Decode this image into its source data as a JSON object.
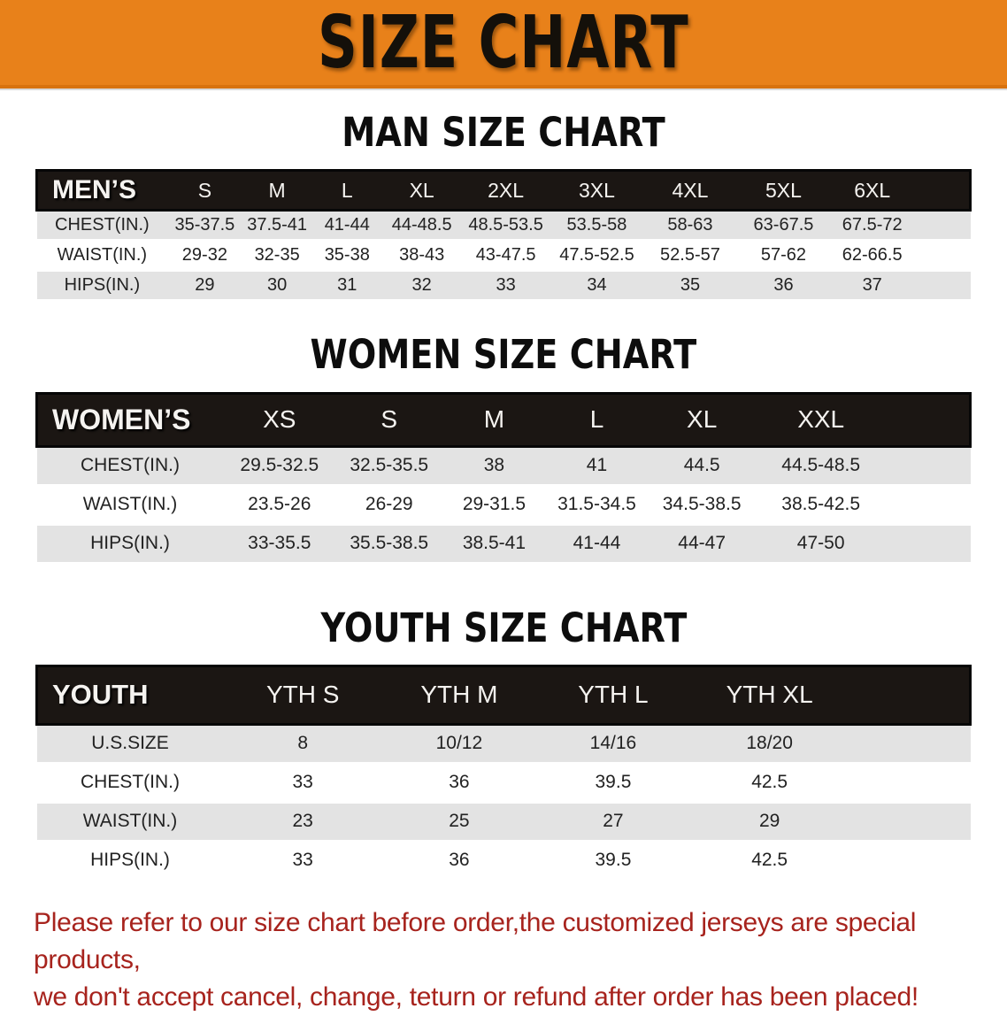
{
  "banner": {
    "title": "SIZE CHART",
    "bg_color": "#e8811a",
    "text_color": "#14100a"
  },
  "sections": [
    {
      "heading": "MAN SIZE CHART",
      "table": {
        "header": {
          "label": "MEN’S",
          "sizes": [
            "S",
            "M",
            "L",
            "XL",
            "2XL",
            "3XL",
            "4XL",
            "5XL",
            "6XL"
          ]
        },
        "rows": [
          {
            "label": "CHEST(IN.)",
            "values": [
              "35-37.5",
              "37.5-41",
              "41-44",
              "44-48.5",
              "48.5-53.5",
              "53.5-58",
              "58-63",
              "63-67.5",
              "67.5-72"
            ]
          },
          {
            "label": "WAIST(IN.)",
            "values": [
              "29-32",
              "32-35",
              "35-38",
              "38-43",
              "43-47.5",
              "47.5-52.5",
              "52.5-57",
              "57-62",
              "62-66.5"
            ]
          },
          {
            "label": "HIPS(IN.)",
            "values": [
              "29",
              "30",
              "31",
              "32",
              "33",
              "34",
              "35",
              "36",
              "37"
            ]
          }
        ]
      }
    },
    {
      "heading": "WOMEN SIZE CHART",
      "table": {
        "header": {
          "label": "WOMEN’S",
          "sizes": [
            "XS",
            "S",
            "M",
            "L",
            "XL",
            "XXL"
          ]
        },
        "rows": [
          {
            "label": "CHEST(IN.)",
            "values": [
              "29.5-32.5",
              "32.5-35.5",
              "38",
              "41",
              "44.5",
              "44.5-48.5"
            ]
          },
          {
            "label": "WAIST(IN.)",
            "values": [
              "23.5-26",
              "26-29",
              "29-31.5",
              "31.5-34.5",
              "34.5-38.5",
              "38.5-42.5"
            ]
          },
          {
            "label": "HIPS(IN.)",
            "values": [
              "33-35.5",
              "35.5-38.5",
              "38.5-41",
              "41-44",
              "44-47",
              "47-50"
            ]
          }
        ]
      }
    },
    {
      "heading": "YOUTH SIZE CHART",
      "table": {
        "header": {
          "label": "YOUTH",
          "sizes": [
            "YTH S",
            "YTH M",
            "YTH L",
            "YTH XL"
          ]
        },
        "rows": [
          {
            "label": "U.S.SIZE",
            "values": [
              "8",
              "10/12",
              "14/16",
              "18/20"
            ]
          },
          {
            "label": "CHEST(IN.)",
            "values": [
              "33",
              "36",
              "39.5",
              "42.5"
            ]
          },
          {
            "label": "WAIST(IN.)",
            "values": [
              "23",
              "25",
              "27",
              "29"
            ]
          },
          {
            "label": "HIPS(IN.)",
            "values": [
              "33",
              "36",
              "39.5",
              "42.5"
            ]
          }
        ]
      }
    }
  ],
  "footer_note": {
    "lines": [
      "Please refer to our size chart before order,the customized jerseys are special products,",
      "we don't accept cancel, change, teturn or refund after order has been placed!"
    ],
    "color": "#a7231d"
  },
  "colors": {
    "banner_orange": "#e8811a",
    "header_black": "#1b1613",
    "row_gray": "#e3e3e3",
    "row_white": "#ffffff",
    "note_red": "#a7231d"
  }
}
